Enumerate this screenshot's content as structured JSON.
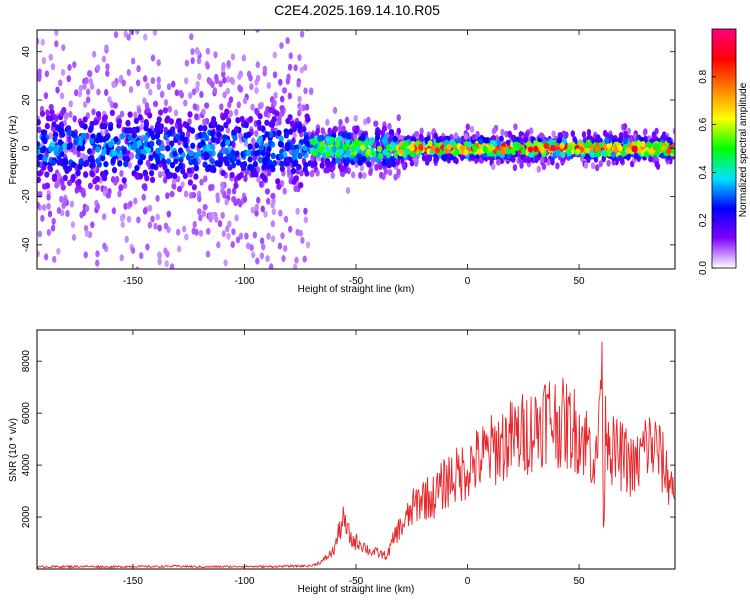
{
  "figure": {
    "title": "C2E4.2025.169.14.10.R05"
  },
  "chart_data": [
    {
      "type": "heatmap",
      "xlabel": "Height of straight line (km)",
      "ylabel": "Frequency (Hz)",
      "xlim": [
        -193,
        93
      ],
      "ylim": [
        -50,
        49
      ],
      "xticks": [
        -150,
        -100,
        -50,
        0,
        50
      ],
      "yticks": [
        -40,
        -20,
        0,
        20,
        40
      ],
      "grid": false,
      "colorbar": {
        "label": "Normalized spectral amplitude",
        "range": [
          0.0,
          1.0
        ],
        "ticks": [
          "0.0",
          "0.2",
          "0.4",
          "0.6",
          "0.8"
        ],
        "colors": [
          "#ffffff",
          "#7f00ff",
          "#0000ff",
          "#00e5ff",
          "#00ff00",
          "#ffff00",
          "#ff8000",
          "#ff0000",
          "#ff0080"
        ]
      },
      "regions": [
        {
          "x": [
            -193,
            -70
          ],
          "freq_spread_hz": 48,
          "core_width_hz": 8,
          "peak_amplitude": 0.3
        },
        {
          "x": [
            -70,
            -30
          ],
          "freq_spread_hz": 10,
          "core_width_hz": 4,
          "peak_amplitude": 0.55
        },
        {
          "x": [
            -30,
            93
          ],
          "freq_spread_hz": 6,
          "core_width_hz": 2,
          "peak_amplitude": 0.9
        }
      ]
    },
    {
      "type": "line",
      "xlabel": "Height of straight line (km)",
      "ylabel": "SNR (10 * v/v)",
      "xlim": [
        -193,
        93
      ],
      "ylim": [
        0,
        9200
      ],
      "xticks": [
        -150,
        -100,
        -50,
        0,
        50
      ],
      "yticks": [
        2000,
        4000,
        6000,
        8000
      ],
      "grid": false,
      "series": [
        {
          "color": "#e8252a",
          "x": [
            -193,
            -180,
            -170,
            -160,
            -150,
            -140,
            -130,
            -120,
            -110,
            -100,
            -90,
            -80,
            -70,
            -65,
            -60,
            -56,
            -52,
            -48,
            -44,
            -40,
            -36,
            -32,
            -28,
            -24,
            -20,
            -16,
            -12,
            -8,
            -4,
            0,
            5,
            10,
            15,
            20,
            25,
            30,
            35,
            40,
            45,
            50,
            55,
            58,
            60,
            61,
            62,
            65,
            70,
            75,
            80,
            85,
            90,
            93
          ],
          "y": [
            80,
            90,
            100,
            80,
            100,
            90,
            110,
            80,
            90,
            100,
            90,
            110,
            120,
            300,
            700,
            1900,
            1100,
            1000,
            700,
            600,
            500,
            1400,
            1800,
            2400,
            2800,
            2700,
            3100,
            3500,
            3600,
            3900,
            4200,
            4500,
            4800,
            5000,
            5200,
            5400,
            5900,
            5700,
            5500,
            5300,
            4700,
            4000,
            8600,
            1500,
            6000,
            4500,
            4300,
            3800,
            4800,
            4600,
            3500,
            3000
          ]
        }
      ]
    }
  ]
}
